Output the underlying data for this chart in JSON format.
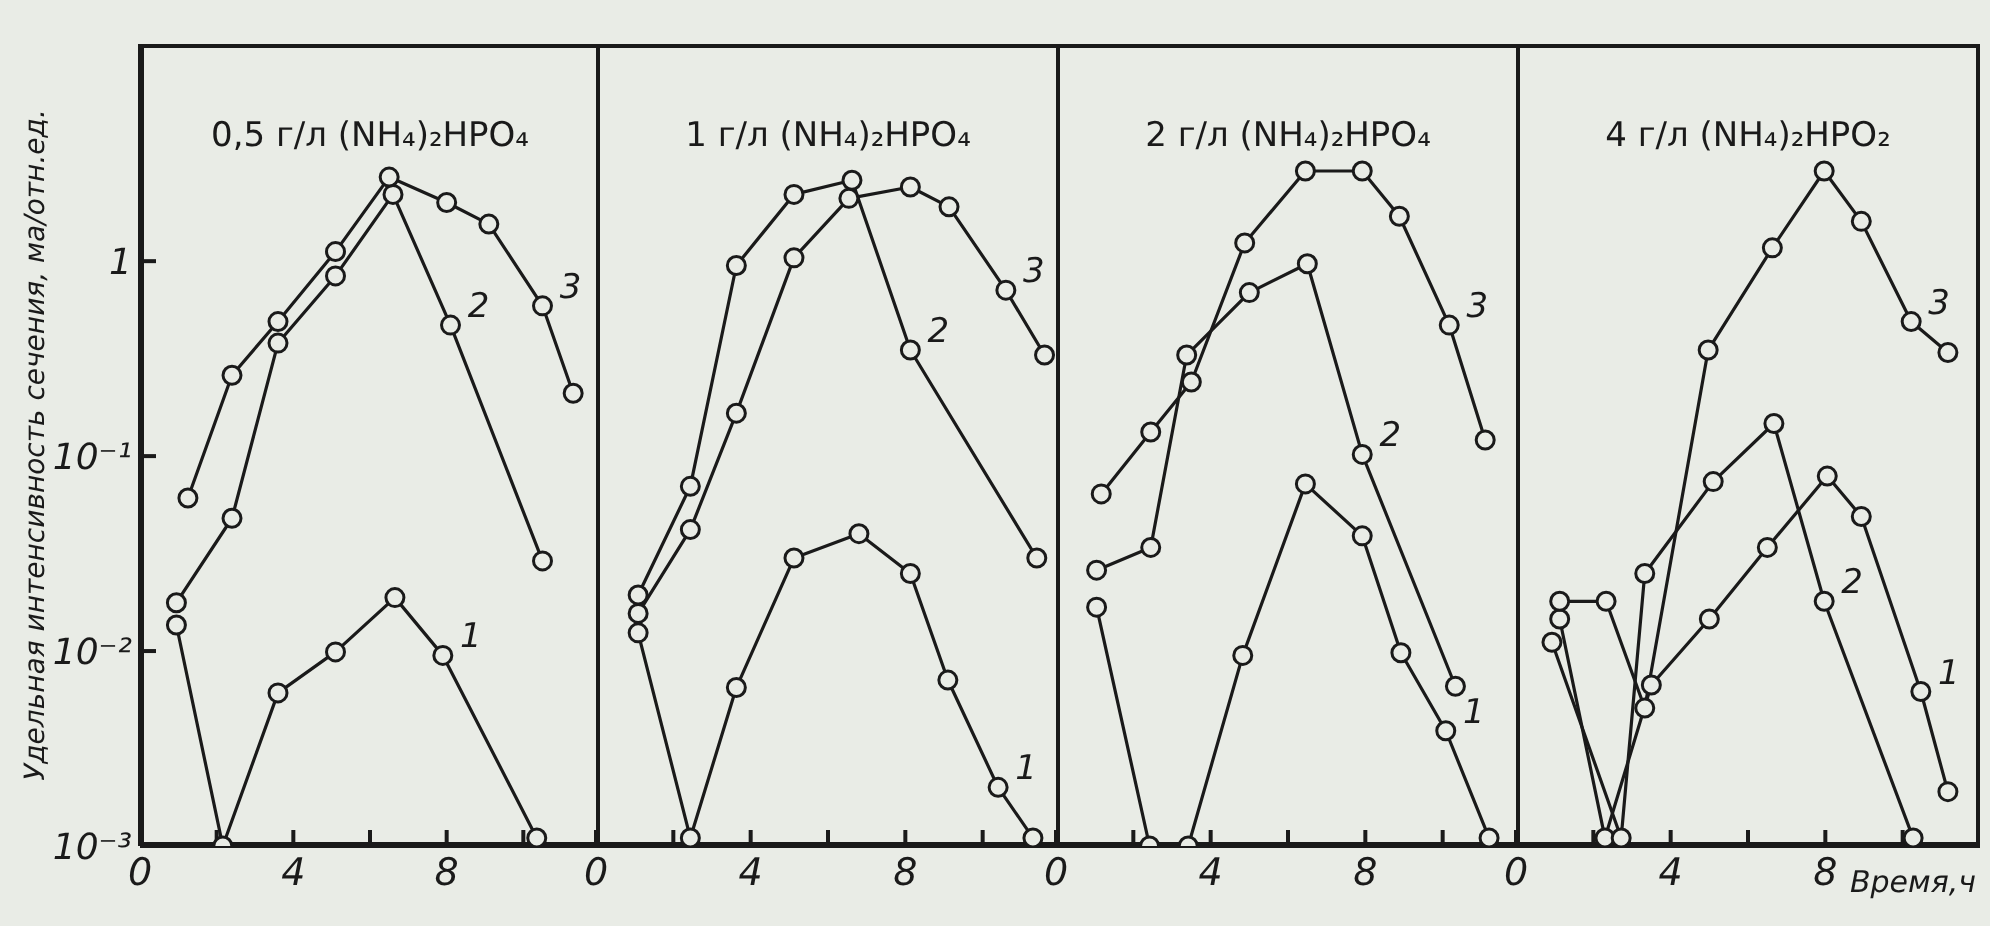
{
  "chart_data": [
    {
      "type": "line",
      "title": "0,5 г/л (NH₄)₂HPO₄",
      "ylabel": "Удельная интенсивность сечения, ма/отн.ед.",
      "log": "y",
      "grid": false,
      "legend": false,
      "marker": "circle",
      "line_style": "solid",
      "xlim": [
        0,
        12
      ],
      "xticks": [
        0,
        {
          "value": 2,
          "label": null
        },
        4,
        {
          "value": 6,
          "label": null
        },
        8,
        {
          "value": 10,
          "label": null
        }
      ],
      "ylim": [
        0.001,
        13
      ],
      "yticks": [
        {
          "value": 0.001,
          "label": "10⁻³"
        },
        {
          "value": 0.01,
          "label": "10⁻²"
        },
        {
          "value": 0.1,
          "label": "10⁻¹"
        },
        1
      ],
      "series": [
        {
          "name": "1",
          "color": "#1a1a1a",
          "x": [
            0.95,
            2.16,
            3.6,
            5.1,
            6.65,
            7.9,
            10.35
          ],
          "values": [
            0.0136,
            0.001,
            0.0061,
            0.0099,
            0.0188,
            0.0095,
            0.0011
          ]
        },
        {
          "name": "2",
          "color": "#1a1a1a",
          "x": [
            0.95,
            2.4,
            3.6,
            5.1,
            6.6,
            8.1,
            10.5
          ],
          "values": [
            0.0177,
            0.048,
            0.38,
            0.84,
            2.2,
            0.47,
            0.029
          ]
        },
        {
          "name": "3",
          "color": "#1a1a1a",
          "x": [
            1.25,
            2.4,
            3.6,
            5.1,
            6.5,
            8.0,
            9.1,
            10.5,
            11.3
          ],
          "values": [
            0.061,
            0.26,
            0.49,
            1.12,
            2.7,
            2.0,
            1.55,
            0.59,
            0.21
          ]
        }
      ]
    },
    {
      "type": "line",
      "title": "1 г/л (NH₄)₂HPO₄",
      "log": "y",
      "grid": false,
      "legend": false,
      "marker": "circle",
      "line_style": "solid",
      "tick_labels": "x",
      "xlim": [
        0,
        12
      ],
      "xticks": [
        0,
        {
          "value": 2,
          "label": null
        },
        4,
        {
          "value": 6,
          "label": null
        },
        8,
        {
          "value": 10,
          "label": null
        }
      ],
      "ylim": [
        0.001,
        13
      ],
      "yticks": [
        {
          "value": 0.001,
          "label": null
        },
        {
          "value": 0.01,
          "label": null
        },
        {
          "value": 0.1,
          "label": null
        },
        {
          "value": 1,
          "label": null
        }
      ],
      "series": [
        {
          "name": "1",
          "color": "#1a1a1a",
          "x": [
            1.09,
            2.44,
            3.63,
            5.12,
            6.8,
            8.13,
            9.1,
            10.4,
            11.3
          ],
          "values": [
            0.0124,
            0.0011,
            0.0065,
            0.03,
            0.04,
            0.025,
            0.0071,
            0.002,
            0.0011
          ]
        },
        {
          "name": "2",
          "color": "#1a1a1a",
          "x": [
            1.09,
            2.44,
            3.63,
            5.12,
            6.62,
            8.13,
            11.4
          ],
          "values": [
            0.0194,
            0.07,
            0.95,
            2.2,
            2.6,
            0.35,
            0.03
          ]
        },
        {
          "name": "3",
          "color": "#1a1a1a",
          "x": [
            1.09,
            2.44,
            3.63,
            5.12,
            6.54,
            8.13,
            9.13,
            10.6,
            11.6
          ],
          "values": [
            0.0156,
            0.042,
            0.166,
            1.04,
            2.1,
            2.4,
            1.9,
            0.71,
            0.33
          ]
        }
      ]
    },
    {
      "type": "line",
      "title": "2 г/л (NH₄)₂HPO₄",
      "log": "y",
      "grid": false,
      "legend": false,
      "marker": "circle",
      "line_style": "solid",
      "tick_labels": "x",
      "xlim": [
        0,
        12
      ],
      "xticks": [
        0,
        {
          "value": 2,
          "label": null
        },
        4,
        {
          "value": 6,
          "label": null
        },
        8,
        {
          "value": 10,
          "label": null
        }
      ],
      "ylim": [
        0.001,
        13
      ],
      "yticks": [
        {
          "value": 0.001,
          "label": null
        },
        {
          "value": 0.01,
          "label": null
        },
        {
          "value": 0.1,
          "label": null
        },
        {
          "value": 1,
          "label": null
        }
      ],
      "series": [
        {
          "name": "1",
          "color": "#1a1a1a",
          "x": [
            1.05,
            2.42,
            3.42,
            4.83,
            6.45,
            7.92,
            8.92,
            10.08,
            11.2
          ],
          "values": [
            0.0168,
            0.001,
            0.001,
            0.0095,
            0.072,
            0.039,
            0.0098,
            0.0039,
            0.0011
          ]
        },
        {
          "name": "2",
          "color": "#1a1a1a",
          "x": [
            1.05,
            2.45,
            3.38,
            5.0,
            6.5,
            7.92,
            10.33
          ],
          "values": [
            0.026,
            0.034,
            0.33,
            0.69,
            0.97,
            0.102,
            0.0066
          ]
        },
        {
          "name": "3",
          "color": "#1a1a1a",
          "x": [
            1.17,
            2.45,
            3.5,
            4.88,
            6.45,
            7.92,
            8.88,
            10.17,
            11.1
          ],
          "values": [
            0.064,
            0.133,
            0.24,
            1.24,
            2.9,
            2.9,
            1.7,
            0.47,
            0.121
          ]
        }
      ]
    },
    {
      "type": "line",
      "title": "4 г/л (NH₄)₂HPO₂",
      "xlabel": "Время,ч",
      "log": "y",
      "grid": false,
      "legend": false,
      "marker": "circle",
      "line_style": "solid",
      "tick_labels": "x",
      "xlim": [
        0,
        12
      ],
      "xticks": [
        0,
        {
          "value": 2,
          "label": null
        },
        4,
        {
          "value": 6,
          "label": null
        },
        8,
        {
          "value": 10,
          "label": null
        }
      ],
      "ylim": [
        0.001,
        13
      ],
      "yticks": [
        {
          "value": 0.001,
          "label": null
        },
        {
          "value": 0.01,
          "label": null
        },
        {
          "value": 0.1,
          "label": null
        },
        {
          "value": 1,
          "label": null
        }
      ],
      "series": [
        {
          "name": "1",
          "color": "#1a1a1a",
          "x": [
            1.13,
            2.3,
            3.5,
            5.0,
            6.5,
            8.05,
            8.93,
            10.47,
            11.17
          ],
          "values": [
            0.0146,
            0.0011,
            0.0067,
            0.0146,
            0.034,
            0.079,
            0.049,
            0.0062,
            0.0019
          ]
        },
        {
          "name": "2",
          "color": "#1a1a1a",
          "x": [
            0.93,
            2.72,
            3.33,
            5.1,
            6.67,
            7.97,
            10.27
          ],
          "values": [
            0.0111,
            0.0011,
            0.025,
            0.074,
            0.147,
            0.018,
            0.0011
          ]
        },
        {
          "name": "3",
          "color": "#1a1a1a",
          "x": [
            1.13,
            2.33,
            3.33,
            4.97,
            6.63,
            7.97,
            8.93,
            10.22,
            11.17
          ],
          "values": [
            0.018,
            0.018,
            0.0051,
            0.35,
            1.17,
            2.9,
            1.6,
            0.49,
            0.34
          ]
        }
      ]
    }
  ]
}
